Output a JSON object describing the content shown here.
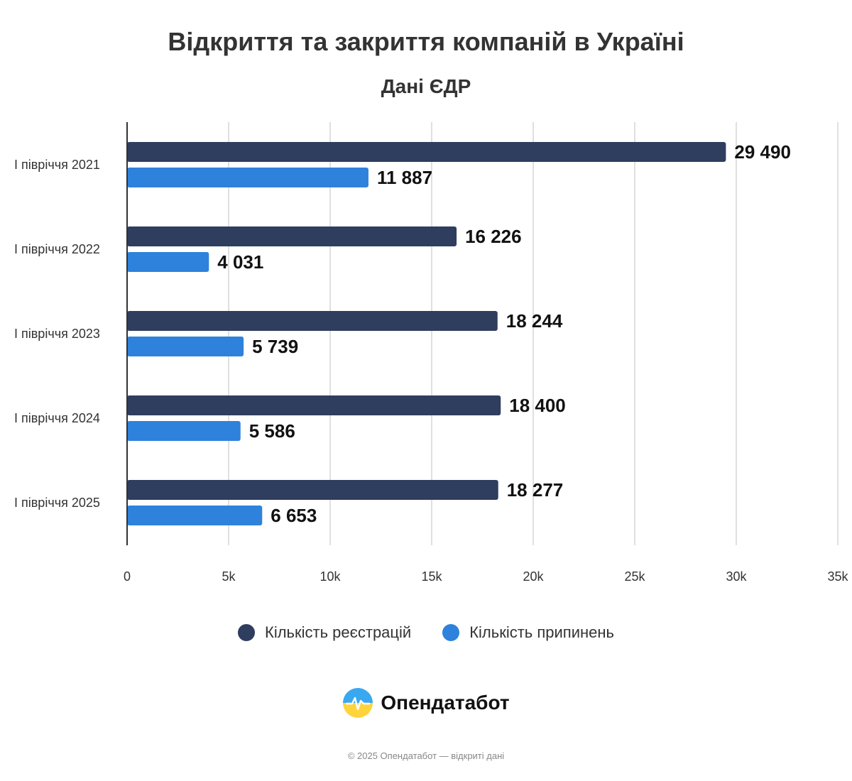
{
  "chart_data": {
    "type": "bar",
    "orientation": "horizontal",
    "title": "Відкриття та закриття компаній в Україні",
    "subtitle": "Дані ЄДР",
    "categories": [
      "І півріччя 2021",
      "І півріччя 2022",
      "І півріччя 2023",
      "І півріччя 2024",
      "І півріччя 2025"
    ],
    "series": [
      {
        "name": "Кількість реєстрацій",
        "color": "#2f3d5e",
        "values": [
          29490,
          16226,
          18244,
          18400,
          18277
        ],
        "labels": [
          "29 490",
          "16 226",
          "18 244",
          "18 400",
          "18 277"
        ]
      },
      {
        "name": "Кількість припинень",
        "color": "#2e82dc",
        "values": [
          11887,
          4031,
          5739,
          5586,
          6653
        ],
        "labels": [
          "11 887",
          "4 031",
          "5 739",
          "5 586",
          "6 653"
        ]
      }
    ],
    "xlim": [
      0,
      35000
    ],
    "ticks": [
      0,
      5000,
      10000,
      15000,
      20000,
      25000,
      30000,
      35000
    ],
    "tick_labels": [
      "0",
      "5k",
      "10k",
      "15k",
      "20k",
      "25k",
      "30k",
      "35k"
    ],
    "grid": true,
    "legend": "bottom"
  },
  "brand": {
    "name": "Опендатабот",
    "logo_icon": "opendatabot-logo-icon"
  },
  "footer": "© 2025 Опендатабот — відкриті дані"
}
